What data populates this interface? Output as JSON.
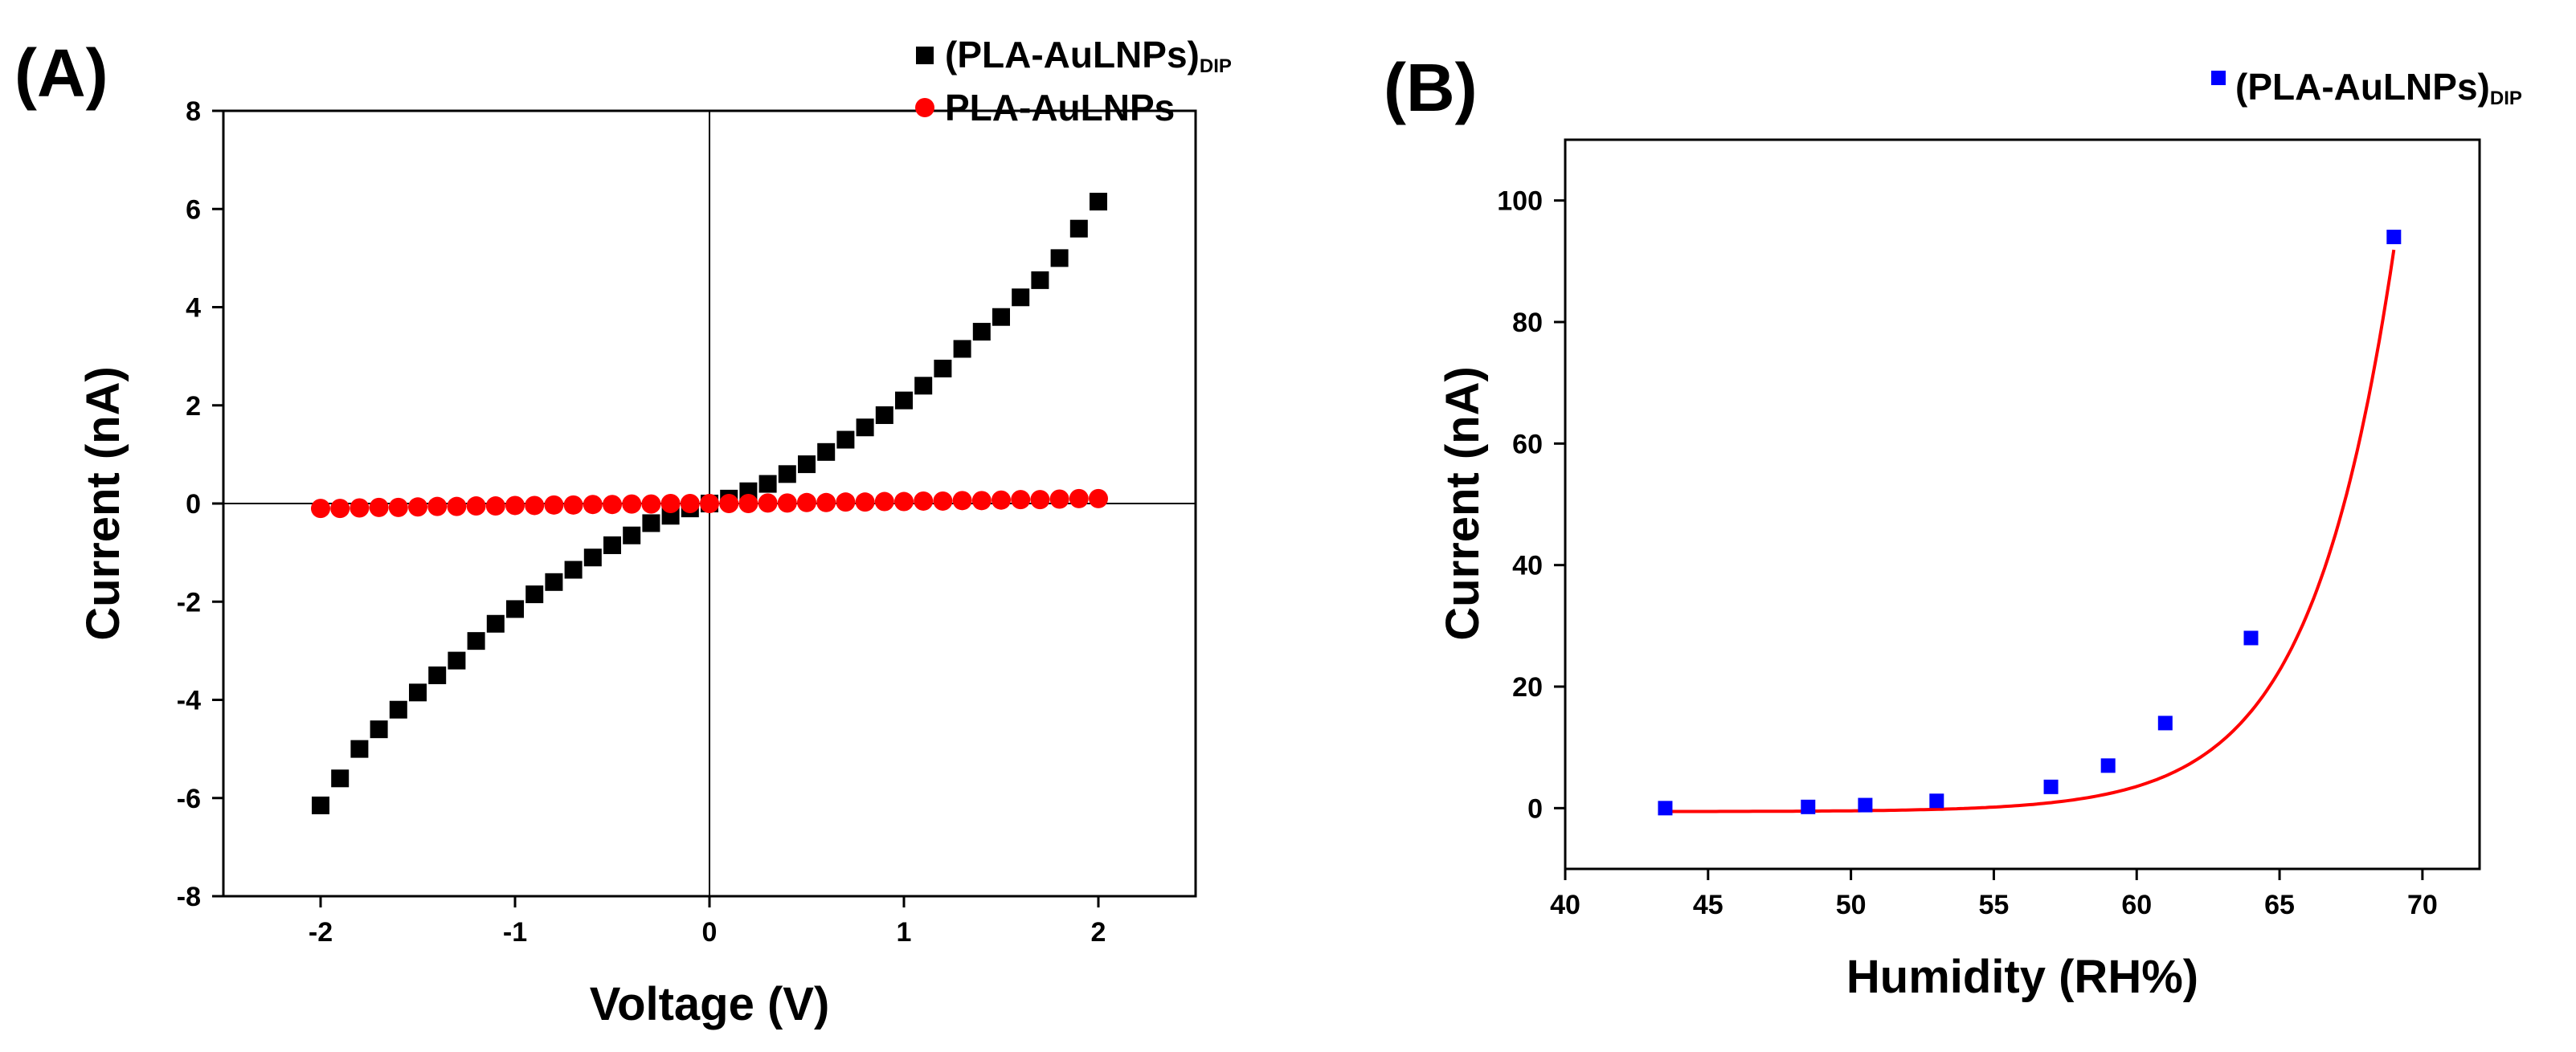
{
  "chart_data": [
    {
      "type": "scatter",
      "panel_label": "(A)",
      "xlabel": "Voltage (V)",
      "ylabel": "Current (nA)",
      "xlim": [
        -2.5,
        2.5
      ],
      "ylim": [
        -8,
        8
      ],
      "xticks": [
        -2,
        -1,
        0,
        1,
        2
      ],
      "yticks": [
        -8,
        -6,
        -4,
        -2,
        0,
        2,
        4,
        6,
        8
      ],
      "grid": false,
      "zero_lines": true,
      "legend_position": "top-right",
      "series": [
        {
          "name": "(PLA-AuLNPs)",
          "name_subscript": "DIP",
          "marker": "square",
          "color": "#000000",
          "x": [
            -2.0,
            -1.9,
            -1.8,
            -1.7,
            -1.6,
            -1.5,
            -1.4,
            -1.3,
            -1.2,
            -1.1,
            -1.0,
            -0.9,
            -0.8,
            -0.7,
            -0.6,
            -0.5,
            -0.4,
            -0.3,
            -0.2,
            -0.1,
            0.0,
            0.1,
            0.2,
            0.3,
            0.4,
            0.5,
            0.6,
            0.7,
            0.8,
            0.9,
            1.0,
            1.1,
            1.2,
            1.3,
            1.4,
            1.5,
            1.6,
            1.7,
            1.8,
            1.9,
            2.0
          ],
          "y": [
            -6.15,
            -5.6,
            -5.0,
            -4.6,
            -4.2,
            -3.85,
            -3.5,
            -3.2,
            -2.8,
            -2.45,
            -2.15,
            -1.85,
            -1.6,
            -1.35,
            -1.1,
            -0.85,
            -0.65,
            -0.4,
            -0.25,
            -0.1,
            0.0,
            0.1,
            0.25,
            0.4,
            0.6,
            0.8,
            1.05,
            1.3,
            1.55,
            1.8,
            2.1,
            2.4,
            2.75,
            3.15,
            3.5,
            3.8,
            4.2,
            4.55,
            5.0,
            5.6,
            6.15
          ]
        },
        {
          "name": "PLA-AuLNPs",
          "marker": "circle",
          "color": "#ff0000",
          "x": [
            -2.0,
            -1.9,
            -1.8,
            -1.7,
            -1.6,
            -1.5,
            -1.4,
            -1.3,
            -1.2,
            -1.1,
            -1.0,
            -0.9,
            -0.8,
            -0.7,
            -0.6,
            -0.5,
            -0.4,
            -0.3,
            -0.2,
            -0.1,
            0.0,
            0.1,
            0.2,
            0.3,
            0.4,
            0.5,
            0.6,
            0.7,
            0.8,
            0.9,
            1.0,
            1.1,
            1.2,
            1.3,
            1.4,
            1.5,
            1.6,
            1.7,
            1.8,
            1.9,
            2.0
          ],
          "y": [
            -0.1,
            -0.1,
            -0.09,
            -0.08,
            -0.08,
            -0.07,
            -0.06,
            -0.06,
            -0.05,
            -0.05,
            -0.04,
            -0.04,
            -0.03,
            -0.03,
            -0.02,
            -0.02,
            -0.01,
            -0.01,
            0.0,
            0.0,
            0.0,
            0.0,
            0.0,
            0.01,
            0.01,
            0.02,
            0.02,
            0.03,
            0.03,
            0.04,
            0.04,
            0.05,
            0.05,
            0.06,
            0.06,
            0.07,
            0.08,
            0.08,
            0.09,
            0.1,
            0.1
          ]
        }
      ]
    },
    {
      "type": "scatter",
      "panel_label": "(B)",
      "xlabel": "Humidity (RH%)",
      "ylabel": "Current (nA)",
      "xlim": [
        40,
        72
      ],
      "ylim": [
        -10,
        110
      ],
      "xticks": [
        40,
        45,
        50,
        55,
        60,
        65,
        70
      ],
      "yticks": [
        0,
        20,
        40,
        60,
        80,
        100
      ],
      "grid": false,
      "legend_position": "top-right",
      "series": [
        {
          "name": "(PLA-AuLNPs)",
          "name_subscript": "DIP",
          "marker": "square",
          "color": "#0000ff",
          "x": [
            43.5,
            48.5,
            50.5,
            53,
            57,
            59,
            61,
            64,
            69
          ],
          "y": [
            0,
            0.2,
            0.5,
            1.2,
            3.5,
            7,
            14,
            28,
            94
          ]
        }
      ],
      "fit": {
        "color": "#ff0000",
        "x_range": [
          43.5,
          69
        ],
        "exp_a": 0.0166,
        "exp_b": 0.345,
        "offset": -0.57
      }
    }
  ]
}
